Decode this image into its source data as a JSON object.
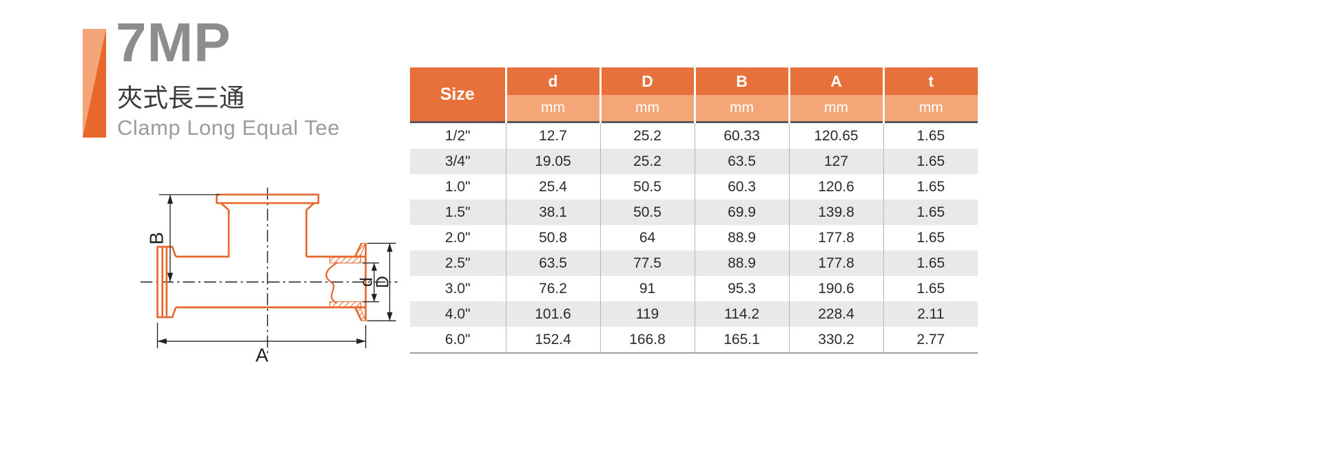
{
  "header": {
    "code": "7MP",
    "title_zh": "夾式長三通",
    "title_en": "Clamp Long Equal Tee"
  },
  "diagram": {
    "dim_labels": {
      "B": "B",
      "A": "A",
      "d": "d",
      "D": "D"
    }
  },
  "table": {
    "size_header": "Size",
    "unit_label": "mm",
    "columns": [
      "d",
      "D",
      "B",
      "A",
      "t"
    ],
    "rows": [
      {
        "size": "1/2\"",
        "values": [
          "12.7",
          "25.2",
          "60.33",
          "120.65",
          "1.65"
        ]
      },
      {
        "size": "3/4\"",
        "values": [
          "19.05",
          "25.2",
          "63.5",
          "127",
          "1.65"
        ]
      },
      {
        "size": "1.0\"",
        "values": [
          "25.4",
          "50.5",
          "60.3",
          "120.6",
          "1.65"
        ]
      },
      {
        "size": "1.5\"",
        "values": [
          "38.1",
          "50.5",
          "69.9",
          "139.8",
          "1.65"
        ]
      },
      {
        "size": "2.0\"",
        "values": [
          "50.8",
          "64",
          "88.9",
          "177.8",
          "1.65"
        ]
      },
      {
        "size": "2.5\"",
        "values": [
          "63.5",
          "77.5",
          "88.9",
          "177.8",
          "1.65"
        ]
      },
      {
        "size": "3.0\"",
        "values": [
          "76.2",
          "91",
          "95.3",
          "190.6",
          "1.65"
        ]
      },
      {
        "size": "4.0\"",
        "values": [
          "101.6",
          "119",
          "114.2",
          "228.4",
          "2.11"
        ]
      },
      {
        "size": "6.0\"",
        "values": [
          "152.4",
          "166.8",
          "165.1",
          "330.2",
          "2.77"
        ]
      }
    ]
  },
  "colors": {
    "accent_dark": "#e8672c",
    "accent_light": "#f3a578",
    "header_dark": "#e8703a",
    "header_light": "#f4a678",
    "row_alt": "#e9e9e9"
  }
}
